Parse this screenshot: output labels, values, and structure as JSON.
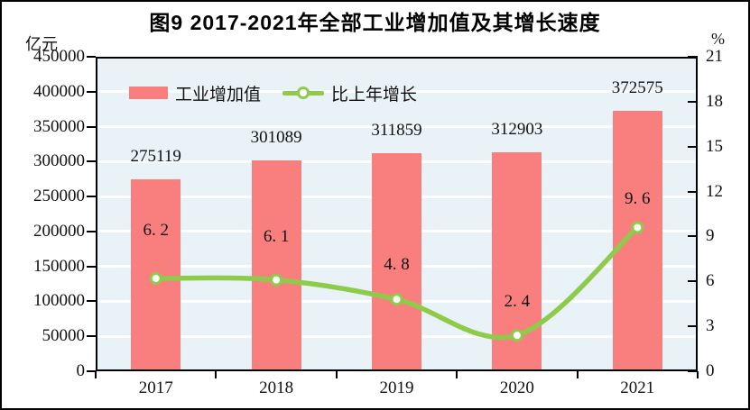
{
  "figure": {
    "title": "图9  2017-2021年全部工业增加值及其增长速度",
    "left_unit": "亿元",
    "right_unit": "%"
  },
  "legend": {
    "bar_label": "工业增加值",
    "line_label": "比上年增长"
  },
  "colors": {
    "bar": "#f97f7f",
    "line": "#8ecb4b",
    "marker_fill": "#ffffff",
    "plot_bg": "#e9f2f7",
    "gridline": "#ffffff",
    "frame": "#000000",
    "text": "#111111"
  },
  "chart_data": {
    "type": "bar+line",
    "title": "图9  2017-2021年全部工业增加值及其增长速度",
    "categories": [
      "2017",
      "2018",
      "2019",
      "2020",
      "2021"
    ],
    "series": [
      {
        "name": "工业增加值",
        "type": "bar",
        "axis": "left",
        "unit": "亿元",
        "values": [
          275119,
          301089,
          311859,
          312903,
          372575
        ],
        "data_labels": [
          "275119",
          "301089",
          "311859",
          "312903",
          "372575"
        ]
      },
      {
        "name": "比上年增长",
        "type": "line",
        "axis": "right",
        "unit": "%",
        "values": [
          6.2,
          6.1,
          4.8,
          2.4,
          9.6
        ],
        "data_labels": [
          "6. 2",
          "6. 1",
          "4. 8",
          "2. 4",
          "9. 6"
        ]
      }
    ],
    "left_axis": {
      "label": "亿元",
      "min": 0,
      "max": 450000,
      "step": 50000,
      "tick_labels": [
        "0",
        "50000",
        "100000",
        "150000",
        "200000",
        "250000",
        "300000",
        "350000",
        "400000",
        "450000"
      ]
    },
    "right_axis": {
      "label": "%",
      "min": 0,
      "max": 21,
      "step": 3,
      "tick_labels": [
        "0",
        "3",
        "6",
        "9",
        "12",
        "15",
        "18",
        "21"
      ]
    },
    "grid": "horizontal white gridlines every 50000",
    "legend_position": "inside-top-left"
  }
}
